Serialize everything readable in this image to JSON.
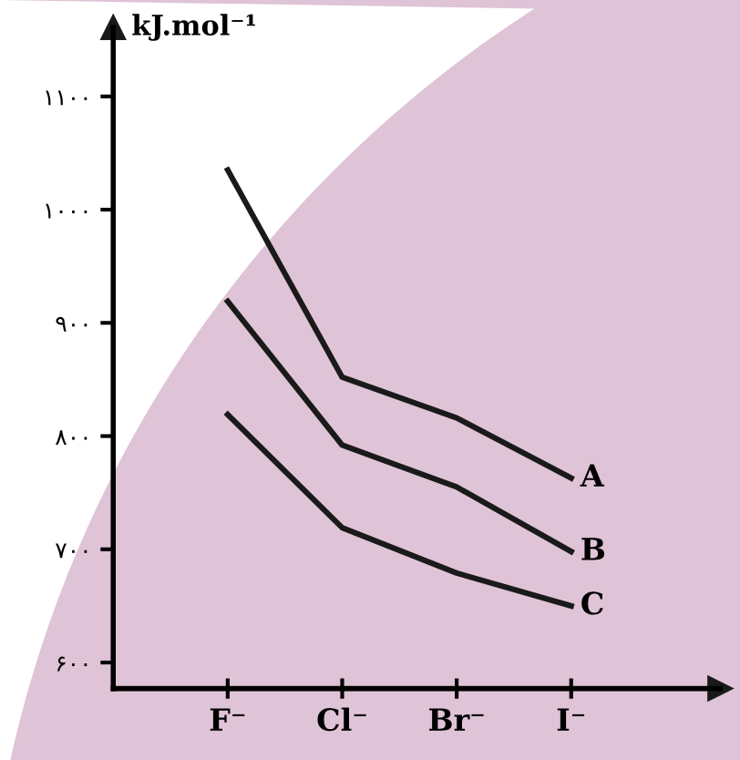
{
  "chart_data": {
    "type": "line",
    "ylabel": "kJ.mol⁻¹",
    "categories": [
      "F⁻",
      "Cl⁻",
      "Br⁻",
      "I⁻"
    ],
    "series": [
      {
        "name": "A",
        "color": "#1a1a1a",
        "values": [
          1035,
          852,
          816,
          763
        ]
      },
      {
        "name": "B",
        "color": "#1a1a1a",
        "values": [
          919,
          792,
          755,
          698
        ]
      },
      {
        "name": "C",
        "color": "#1a1a1a",
        "values": [
          819,
          719,
          679,
          650
        ]
      }
    ],
    "ylim": [
      577,
      1161
    ],
    "yticks": [
      {
        "value": 600,
        "label": "۶۰۰"
      },
      {
        "value": 700,
        "label": "۷۰۰"
      },
      {
        "value": 800,
        "label": "۸۰۰"
      },
      {
        "value": 900,
        "label": "۹۰۰"
      },
      {
        "value": 1000,
        "label": "۱۰۰۰"
      },
      {
        "value": 1100,
        "label": "۱۱۰۰"
      }
    ],
    "grid": false,
    "legend": false,
    "marker": "none",
    "line_style": "solid"
  }
}
